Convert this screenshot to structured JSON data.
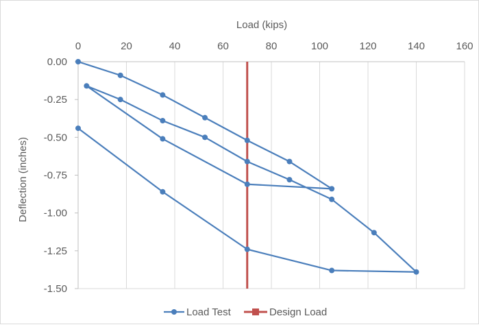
{
  "chart_data": {
    "type": "line",
    "title": "",
    "xlabel": "Load (kips)",
    "ylabel": "Deflection (inches)",
    "xlim": [
      0,
      160
    ],
    "ylim": [
      -1.5,
      0
    ],
    "x_ticks": [
      0,
      20,
      40,
      60,
      80,
      100,
      120,
      140,
      160
    ],
    "x_tick_labels": [
      "0",
      "20",
      "40",
      "60",
      "80",
      "100",
      "120",
      "140",
      "160"
    ],
    "y_ticks": [
      0,
      -0.25,
      -0.5,
      -0.75,
      -1.0,
      -1.25,
      -1.5
    ],
    "y_tick_labels": [
      "0.00",
      "-0.25",
      "-0.50",
      "-0.75",
      "-1.00",
      "-1.25",
      "-1.50"
    ],
    "x_axis_position": "top",
    "grid": "vertical",
    "legend_position": "bottom",
    "series": [
      {
        "name": "Load Test",
        "color": "#4a7ebb",
        "marker": "circle",
        "points": [
          [
            0,
            0.0
          ],
          [
            17.5,
            -0.09
          ],
          [
            35,
            -0.22
          ],
          [
            52.5,
            -0.37
          ],
          [
            70,
            -0.52
          ],
          [
            87.5,
            -0.66
          ],
          [
            105,
            -0.84
          ],
          [
            70,
            -0.81
          ],
          [
            35,
            -0.51
          ],
          [
            3.5,
            -0.16
          ],
          [
            17.5,
            -0.25
          ],
          [
            35,
            -0.39
          ],
          [
            52.5,
            -0.5
          ],
          [
            70,
            -0.66
          ],
          [
            87.5,
            -0.78
          ],
          [
            105,
            -0.91
          ],
          [
            122.5,
            -1.13
          ],
          [
            140,
            -1.39
          ],
          [
            105,
            -1.38
          ],
          [
            70,
            -1.24
          ],
          [
            35,
            -0.86
          ],
          [
            0,
            -0.44
          ]
        ]
      },
      {
        "name": "Design Load",
        "color": "#c0504d",
        "marker": "none",
        "points": [
          [
            70,
            0.0
          ],
          [
            70,
            -1.5
          ]
        ]
      }
    ]
  }
}
